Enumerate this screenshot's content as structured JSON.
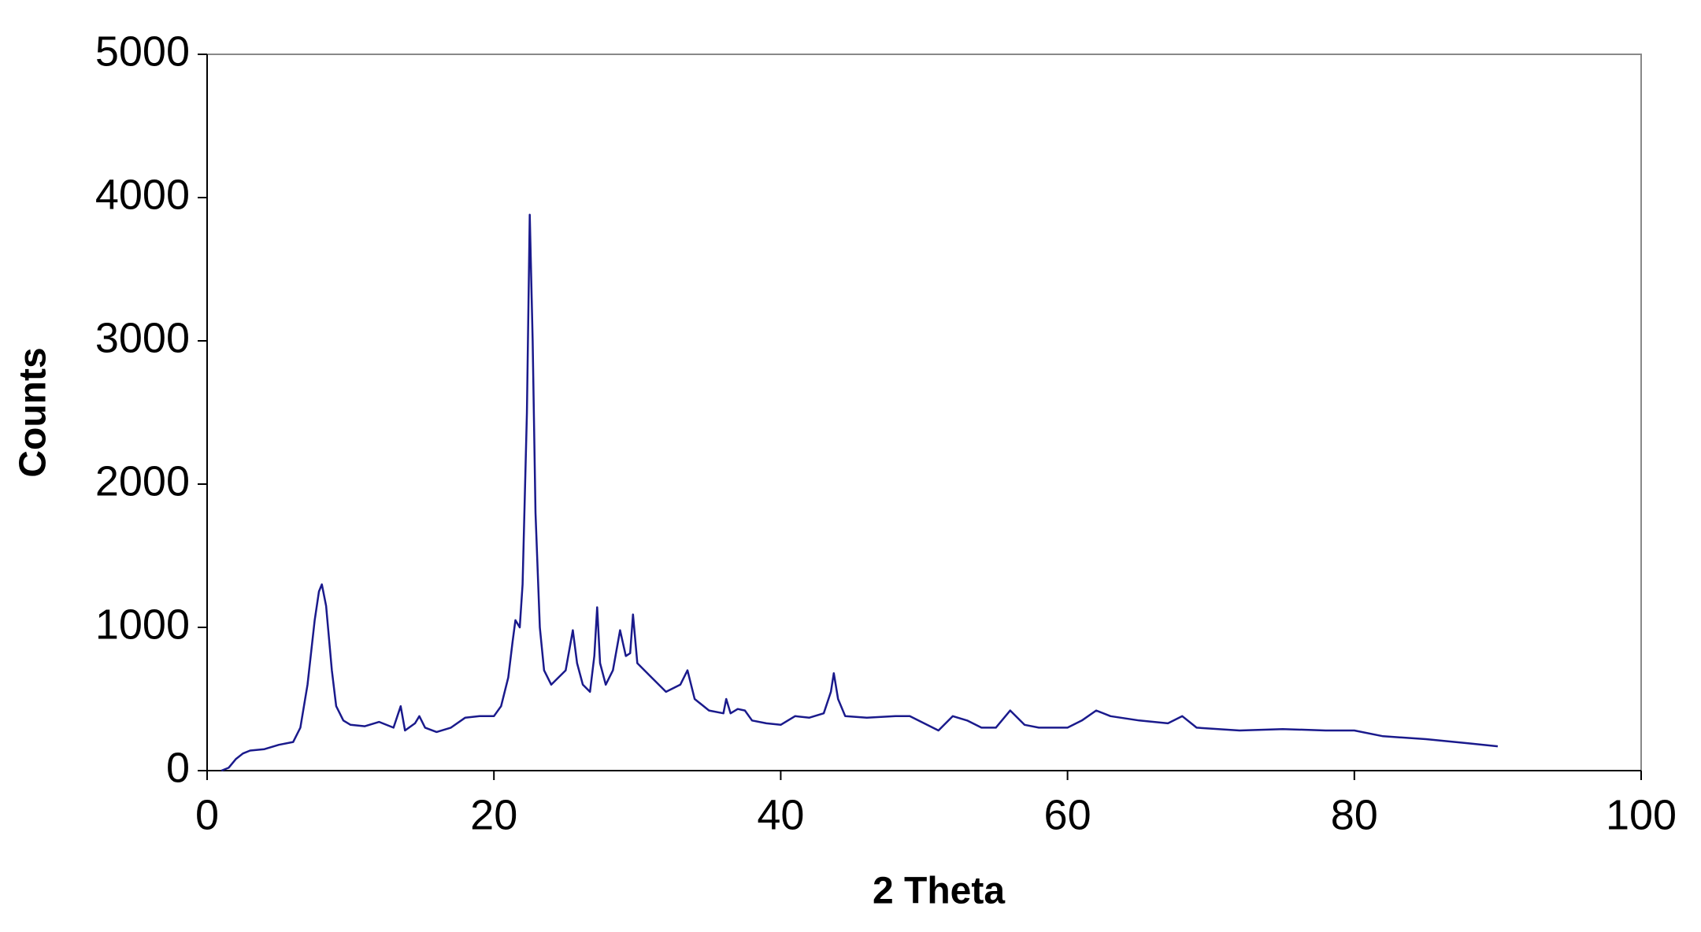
{
  "chart_data": {
    "type": "line",
    "xlabel": "2 Theta",
    "ylabel": "Counts",
    "x": [
      1.0,
      1.5,
      2,
      2.5,
      3,
      4,
      5,
      6,
      6.5,
      7,
      7.5,
      7.8,
      8,
      8.3,
      8.7,
      9,
      9.5,
      10,
      11,
      12,
      13,
      13.5,
      13.8,
      14.5,
      14.8,
      15.2,
      16,
      17,
      18,
      19,
      20,
      20.5,
      21,
      21.3,
      21.5,
      21.8,
      22,
      22.3,
      22.5,
      22.7,
      22.9,
      23.2,
      23.5,
      24,
      25,
      25.5,
      25.8,
      26.2,
      26.7,
      27.0,
      27.2,
      27.4,
      27.8,
      28.3,
      28.8,
      29.2,
      29.5,
      29.7,
      30,
      30.5,
      31,
      32,
      33,
      33.5,
      34,
      35,
      36,
      36.2,
      36.5,
      37,
      37.5,
      38,
      39,
      40,
      41,
      42,
      43,
      43.5,
      43.7,
      44,
      44.5,
      46,
      48,
      49,
      50,
      51,
      52,
      53,
      54,
      55,
      56,
      57,
      58,
      60,
      61,
      62,
      63,
      65,
      67,
      68,
      69,
      72,
      75,
      78,
      80,
      82,
      85,
      88,
      90
    ],
    "values": [
      0,
      20,
      80,
      120,
      140,
      150,
      180,
      200,
      300,
      600,
      1050,
      1250,
      1300,
      1150,
      700,
      450,
      350,
      320,
      310,
      340,
      300,
      450,
      280,
      330,
      380,
      300,
      270,
      300,
      370,
      380,
      380,
      450,
      650,
      900,
      1050,
      1000,
      1300,
      2500,
      3880,
      3000,
      1800,
      1000,
      700,
      600,
      700,
      980,
      750,
      600,
      550,
      800,
      1140,
      750,
      600,
      700,
      980,
      800,
      820,
      1090,
      750,
      700,
      650,
      550,
      600,
      700,
      500,
      420,
      400,
      500,
      400,
      430,
      420,
      350,
      330,
      320,
      380,
      370,
      400,
      550,
      680,
      500,
      380,
      370,
      380,
      380,
      330,
      280,
      380,
      350,
      300,
      300,
      420,
      320,
      300,
      300,
      350,
      420,
      380,
      350,
      330,
      380,
      300,
      280,
      290,
      280,
      280,
      240,
      220,
      190,
      170
    ],
    "color": "#1a1a8c",
    "xlim": [
      0,
      100
    ],
    "xticks": [
      0,
      20,
      40,
      60,
      80,
      100
    ],
    "ylim": [
      0,
      5000
    ],
    "yticks": [
      0,
      1000,
      2000,
      3000,
      4000,
      5000
    ],
    "grid": false
  }
}
